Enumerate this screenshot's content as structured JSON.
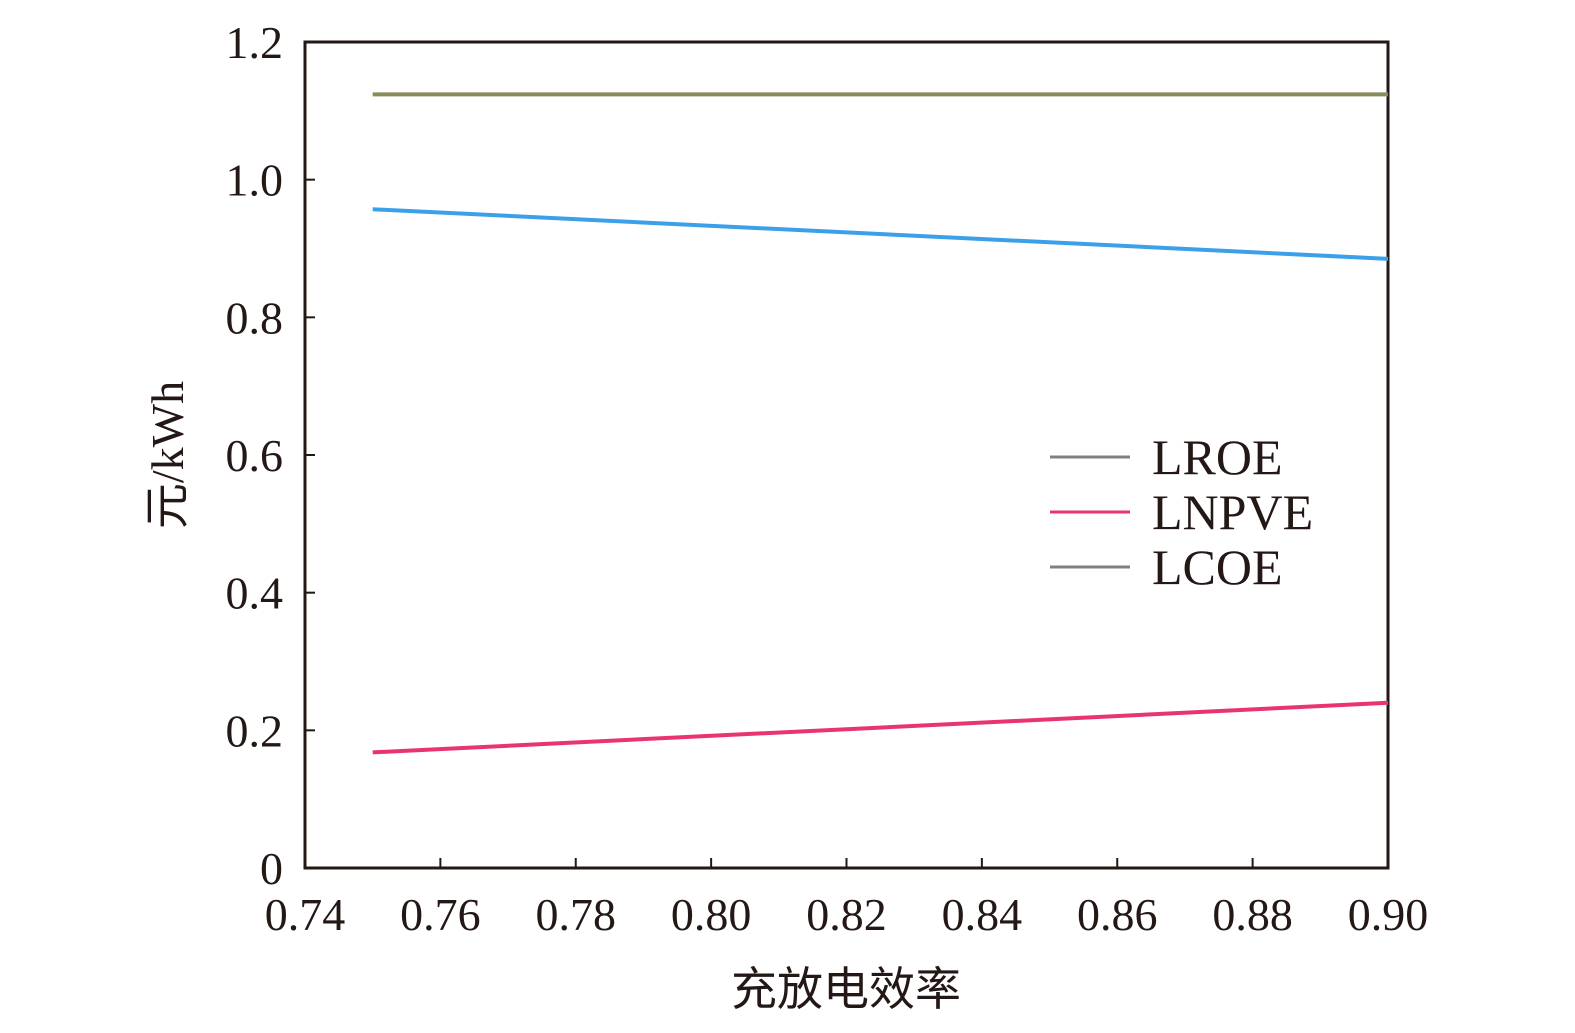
{
  "chart_data": {
    "type": "line",
    "title": "",
    "xlabel": "充放电效率",
    "ylabel": "元/kWh",
    "xlim": [
      0.74,
      0.9
    ],
    "ylim": [
      0,
      1.2
    ],
    "x_ticks": [
      "0.74",
      "0.76",
      "0.78",
      "0.80",
      "0.82",
      "0.84",
      "0.86",
      "0.88",
      "0.90"
    ],
    "y_ticks": [
      "0",
      "0.2",
      "0.4",
      "0.6",
      "0.8",
      "1.0",
      "1.2"
    ],
    "x": [
      0.75,
      0.9
    ],
    "grid": false,
    "legend_position": "right",
    "series": [
      {
        "name": "LROE",
        "color": "#8a8a5a",
        "legend_color": "#808080",
        "values": [
          1.124,
          1.124
        ]
      },
      {
        "name": "LNPVE",
        "color": "#e8356e",
        "legend_color": "#e8356e",
        "values": [
          0.168,
          0.24
        ]
      },
      {
        "name": "LCOE",
        "color": "#3aa0e8",
        "legend_color": "#808080",
        "values": [
          0.957,
          0.885
        ]
      }
    ]
  }
}
